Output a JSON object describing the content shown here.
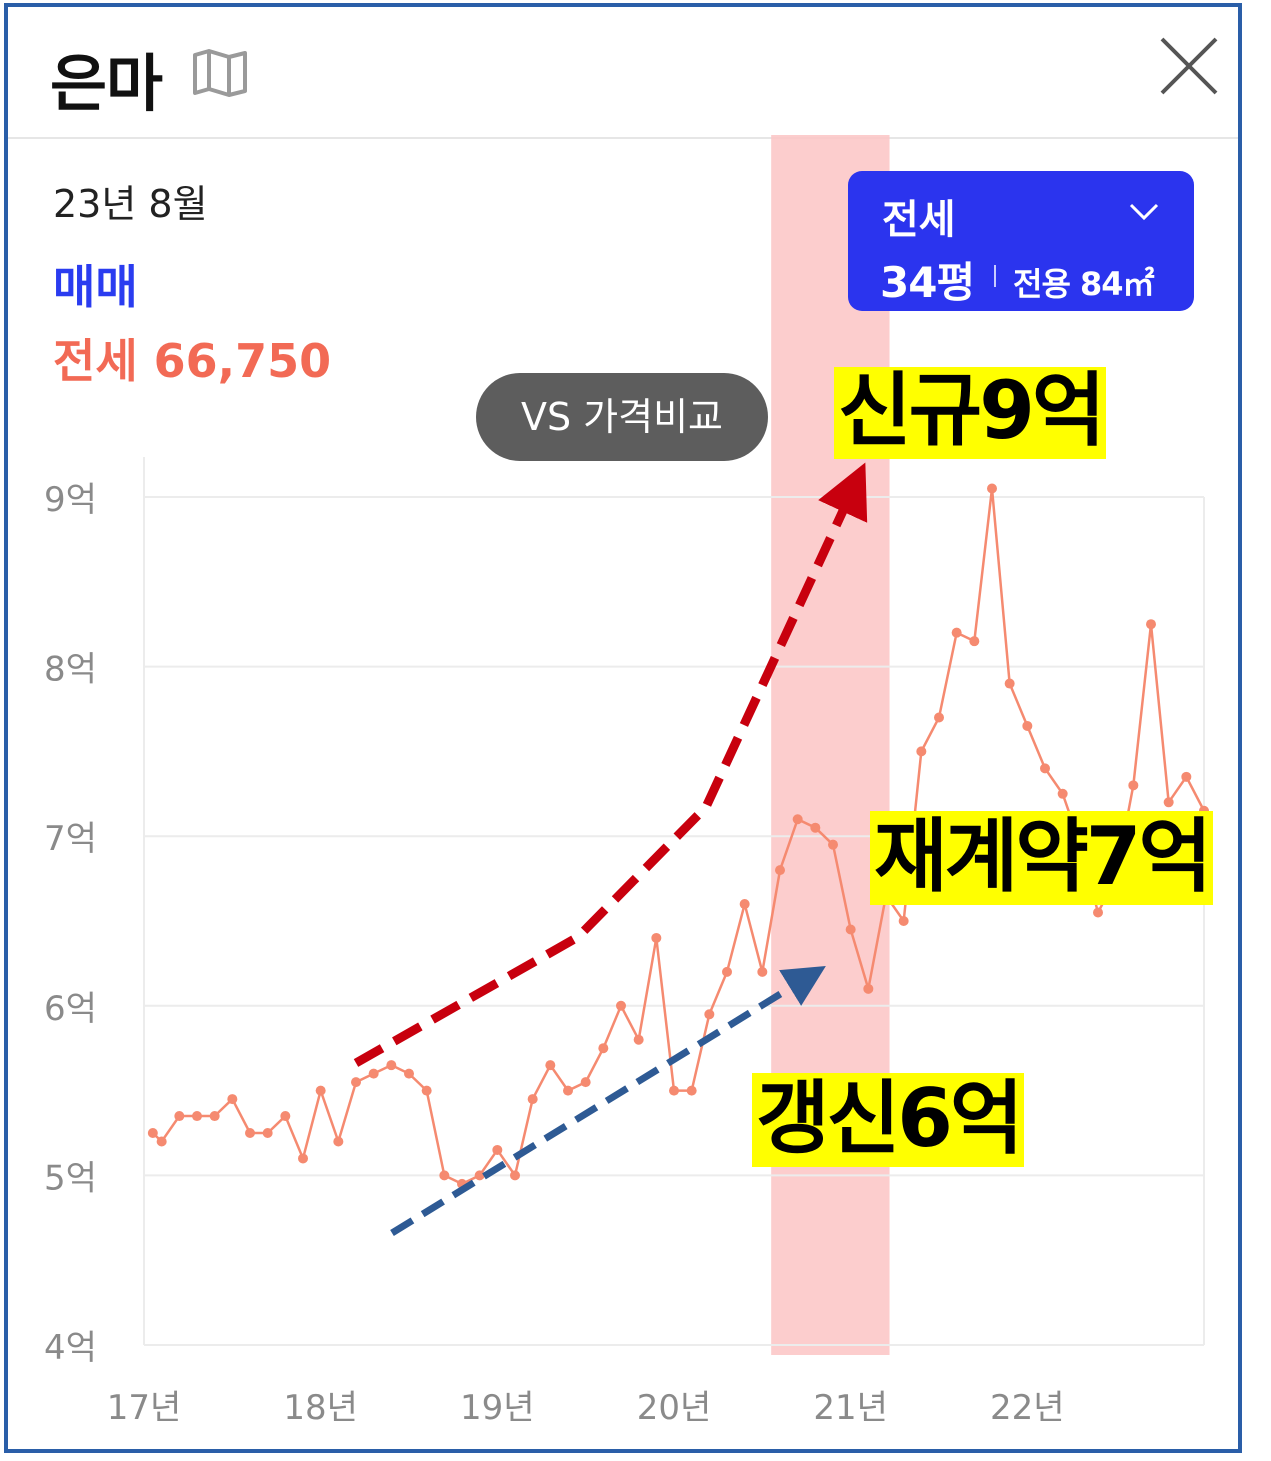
{
  "header": {
    "title": "은마",
    "map_icon": "map-icon",
    "close_icon": "close-icon"
  },
  "summary": {
    "date": "23년 8월",
    "trade_label": "매매",
    "jeonse_label": "전세 66,750"
  },
  "selector": {
    "type": "전세",
    "size": "34평",
    "area": "전용 84㎡"
  },
  "compare_button": "VS 가격비교",
  "callouts": {
    "new": "신규9억",
    "recontract": "재계약7억",
    "renewal": "갱신6억"
  },
  "colors": {
    "line": "#f58a70",
    "highlight": "#fbc4c4",
    "red_arrow": "#c8000e",
    "blue_arrow": "#2e5a94",
    "selector_bg": "#2b34ee",
    "trade": "#2a3cf0",
    "jeonse": "#f26a55",
    "callout_bg": "#ffff00"
  },
  "chart_data": {
    "type": "line",
    "y_ticks": [
      "9억",
      "8억",
      "7억",
      "6억",
      "5억",
      "4억"
    ],
    "y_tick_values": [
      9,
      8,
      7,
      6,
      5,
      4
    ],
    "x_ticks": [
      "17년",
      "18년",
      "19년",
      "20년",
      "21년",
      "22년"
    ],
    "x_tick_values": [
      2017,
      2018,
      2019,
      2020,
      2021,
      2022
    ],
    "xlim": [
      2017.0,
      2023.0
    ],
    "ylim": [
      4,
      9.2
    ],
    "grid": true,
    "highlight_range": [
      2020.55,
      2021.22
    ],
    "series": [
      {
        "x": [
          2017.05,
          2017.1,
          2017.2,
          2017.3,
          2017.4,
          2017.5,
          2017.6,
          2017.7,
          2017.8,
          2017.9,
          2018.0,
          2018.1,
          2018.2,
          2018.3,
          2018.4,
          2018.5,
          2018.6,
          2018.7,
          2018.8,
          2018.9,
          2019.0,
          2019.1,
          2019.2,
          2019.3,
          2019.4,
          2019.5,
          2019.6,
          2019.7,
          2019.8,
          2019.9,
          2020.0,
          2020.1,
          2020.2,
          2020.3,
          2020.4,
          2020.5,
          2020.6,
          2020.7,
          2020.8,
          2020.9,
          2021.0,
          2021.1,
          2021.2,
          2021.3,
          2021.4,
          2021.5,
          2021.6,
          2021.7,
          2021.8,
          2021.9,
          2022.0,
          2022.1,
          2022.2,
          2022.3,
          2022.4,
          2022.5,
          2022.6,
          2022.7,
          2022.8,
          2022.9,
          2023.0
        ],
        "y": [
          5.25,
          5.2,
          5.35,
          5.35,
          5.35,
          5.45,
          5.25,
          5.25,
          5.35,
          5.1,
          5.5,
          5.2,
          5.55,
          5.6,
          5.65,
          5.6,
          5.5,
          5.0,
          4.95,
          5.0,
          5.15,
          5.0,
          5.45,
          5.65,
          5.5,
          5.55,
          5.75,
          6.0,
          5.8,
          6.4,
          5.5,
          5.5,
          5.95,
          6.2,
          6.6,
          6.2,
          6.8,
          7.1,
          7.05,
          6.95,
          6.45,
          6.1,
          6.65,
          6.5,
          7.5,
          7.7,
          8.2,
          8.15,
          9.05,
          7.9,
          7.65,
          7.4,
          7.25,
          6.95,
          6.55,
          6.75,
          7.3,
          8.25,
          7.2,
          7.35,
          7.15
        ]
      }
    ]
  }
}
